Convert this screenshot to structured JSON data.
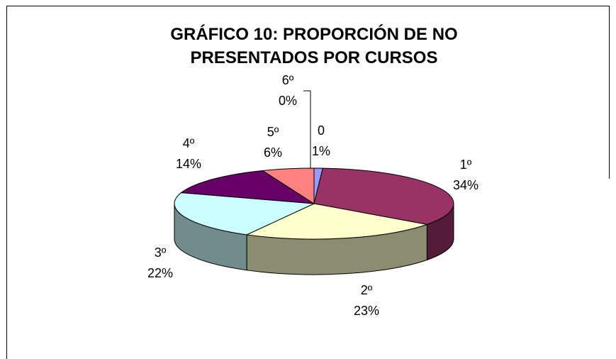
{
  "chart_data": {
    "type": "pie",
    "title": "GRÁFICO 10: PROPORCIÓN DE NO PRESENTADOS POR CURSOS",
    "categories": [
      "0",
      "1º",
      "2º",
      "3º",
      "4º",
      "5º",
      "6º"
    ],
    "values": [
      1,
      34,
      23,
      22,
      14,
      6,
      0
    ],
    "value_labels": [
      "1%",
      "34%",
      "23%",
      "22%",
      "14%",
      "6%",
      "0%"
    ],
    "colors": [
      "#9999ff",
      "#993366",
      "#ffffcc",
      "#ccffff",
      "#660066",
      "#ff8080",
      "#0066cc"
    ]
  }
}
